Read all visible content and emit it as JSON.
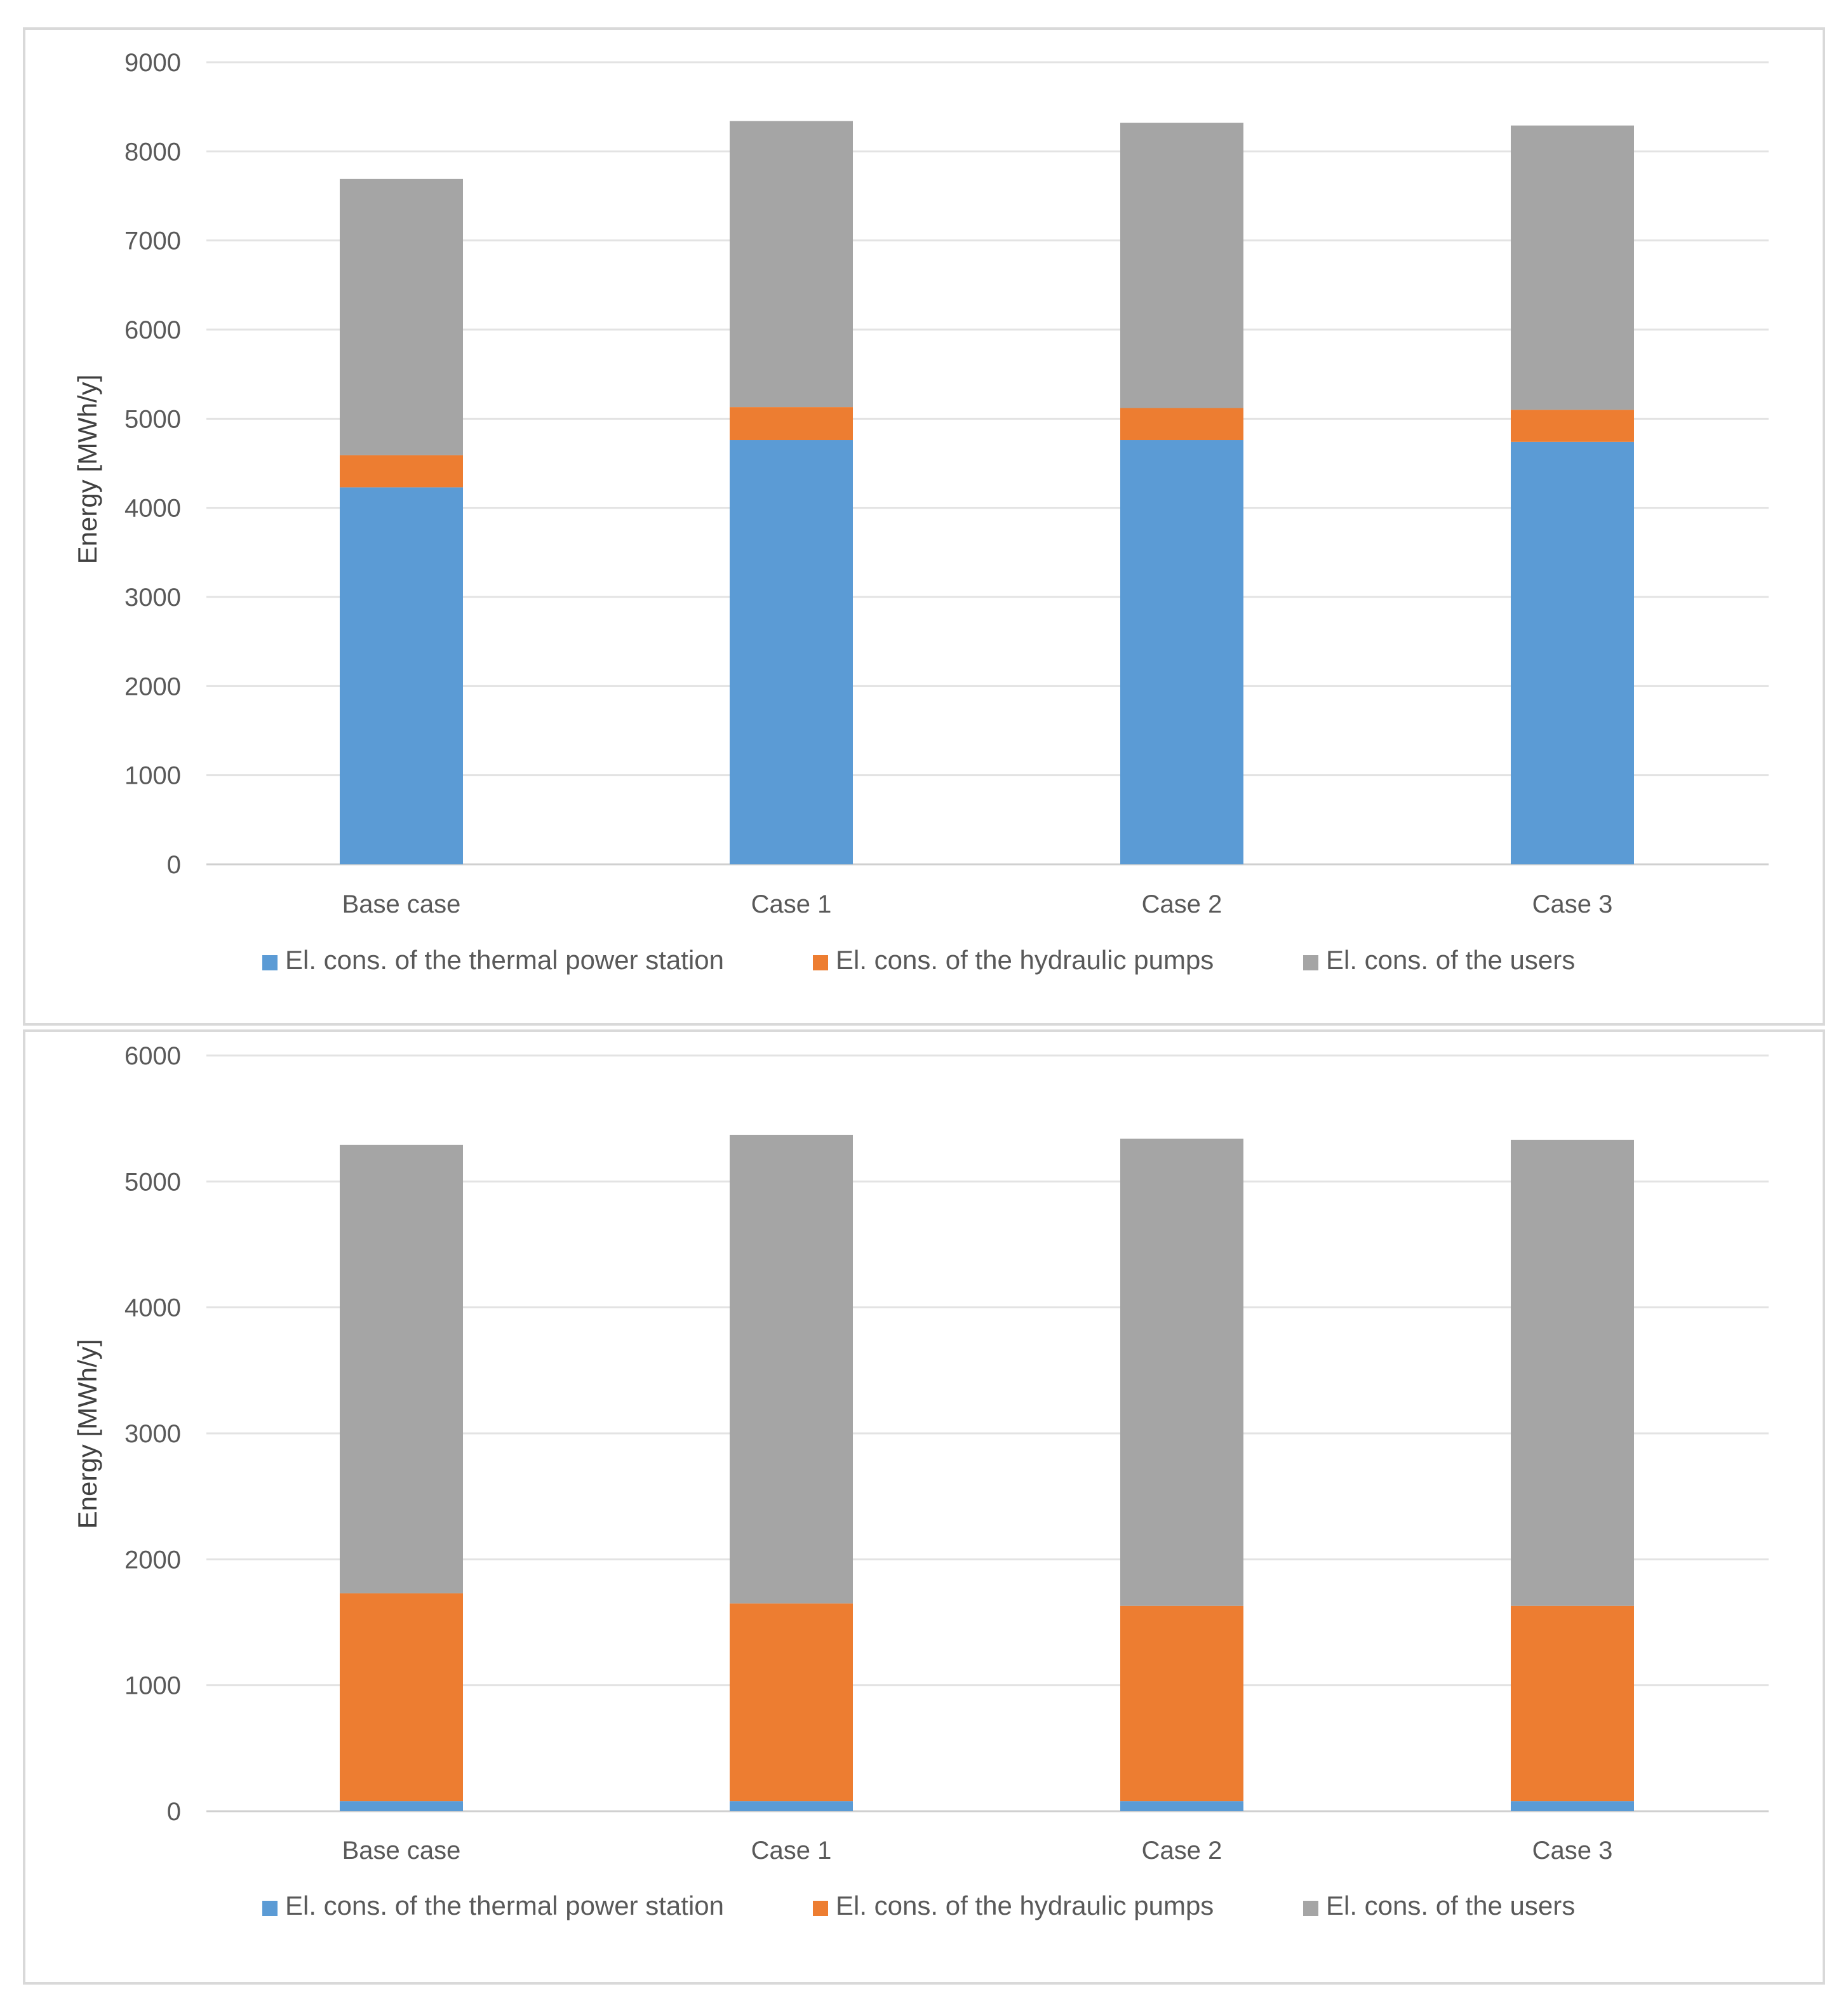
{
  "chart_data": [
    {
      "type": "bar",
      "stacked": true,
      "categories": [
        "Base case",
        "Case 1",
        "Case 2",
        "Case 3"
      ],
      "ylabel": "Energy [MWh/y]",
      "xlabel": "",
      "ylim": [
        0,
        9000
      ],
      "yticks": [
        0,
        1000,
        2000,
        3000,
        4000,
        5000,
        6000,
        7000,
        8000,
        9000
      ],
      "grid": true,
      "legend_position": "bottom",
      "series": [
        {
          "name": "El. cons. of the thermal power station",
          "color": "#5B9BD5",
          "values": [
            4230,
            4760,
            4760,
            4740
          ]
        },
        {
          "name": "El. cons. of the hydraulic pumps",
          "color": "#ED7D31",
          "values": [
            360,
            370,
            360,
            360
          ]
        },
        {
          "name": "El. cons. of the users",
          "color": "#A5A5A5",
          "values": [
            3100,
            3210,
            3200,
            3190
          ]
        }
      ]
    },
    {
      "type": "bar",
      "stacked": true,
      "categories": [
        "Base case",
        "Case 1",
        "Case 2",
        "Case 3"
      ],
      "ylabel": "Energy [MWh/y]",
      "xlabel": "",
      "ylim": [
        0,
        6000
      ],
      "yticks": [
        0,
        1000,
        2000,
        3000,
        4000,
        5000,
        6000
      ],
      "grid": true,
      "legend_position": "bottom",
      "series": [
        {
          "name": "El. cons. of the thermal power station",
          "color": "#5B9BD5",
          "values": [
            80,
            80,
            80,
            80
          ]
        },
        {
          "name": "El. cons. of the hydraulic pumps",
          "color": "#ED7D31",
          "values": [
            1650,
            1570,
            1550,
            1550
          ]
        },
        {
          "name": "El. cons. of the users",
          "color": "#A5A5A5",
          "values": [
            3560,
            3720,
            3710,
            3700
          ]
        }
      ]
    }
  ]
}
